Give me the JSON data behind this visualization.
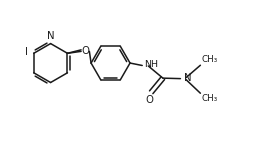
{
  "background_color": "#ffffff",
  "line_color": "#1a1a1a",
  "line_width": 1.1,
  "font_size": 6.8,
  "fig_width": 2.57,
  "fig_height": 1.48,
  "dpi": 100,
  "xlim": [
    0.0,
    10.5
  ],
  "ylim": [
    0.0,
    6.0
  ]
}
